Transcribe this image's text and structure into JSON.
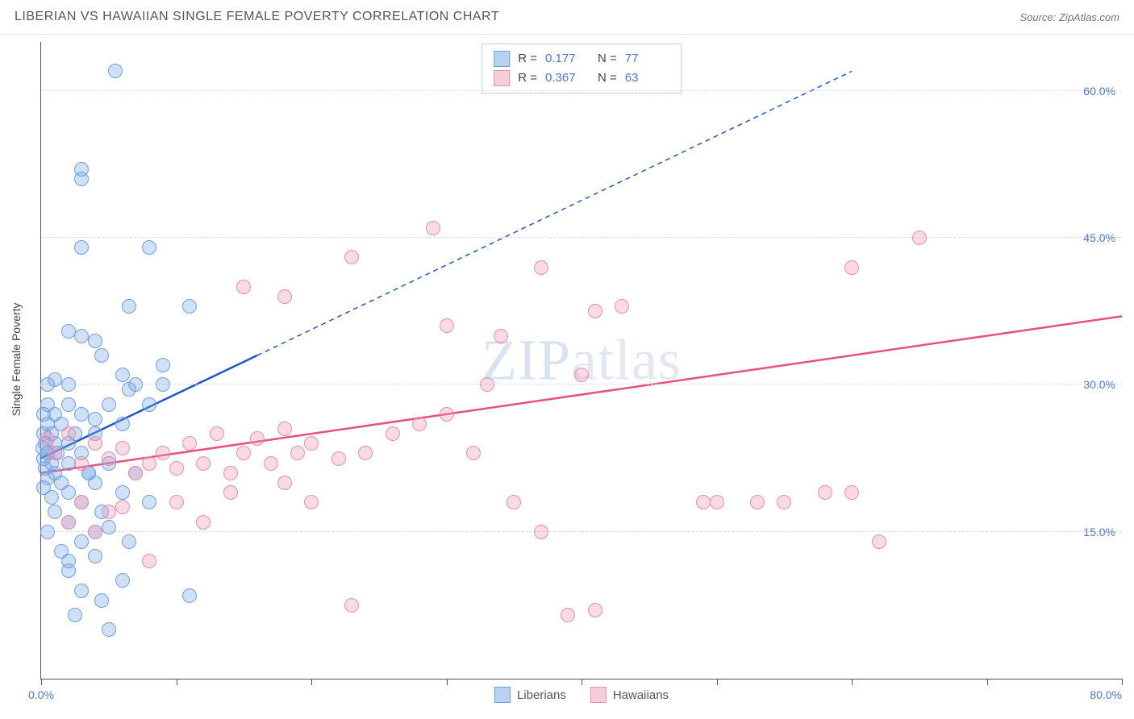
{
  "title": "LIBERIAN VS HAWAIIAN SINGLE FEMALE POVERTY CORRELATION CHART",
  "source_label": "Source: ",
  "source_name": "ZipAtlas.com",
  "ylabel": "Single Female Poverty",
  "watermark_a": "ZIP",
  "watermark_b": "atlas",
  "axes": {
    "xlim": [
      0,
      80
    ],
    "ylim": [
      0,
      65
    ],
    "xtick_positions": [
      0,
      10,
      20,
      30,
      40,
      50,
      60,
      70,
      80
    ],
    "xtick_labels_shown": {
      "0": "0.0%",
      "80": "80.0%"
    },
    "ytick_positions": [
      15,
      30,
      45,
      60
    ],
    "ytick_labels": {
      "15": "15.0%",
      "30": "30.0%",
      "45": "45.0%",
      "60": "60.0%"
    },
    "gridline_color": "#dddddd",
    "axis_color": "#555555",
    "tick_label_color": "#4a78d6"
  },
  "series": {
    "liberians": {
      "label": "Liberians",
      "fill": "rgba(120,165,230,0.35)",
      "stroke": "#6f9fe0",
      "swatch_fill": "#b9d1f2",
      "swatch_border": "#6f9fe0",
      "trend_color": "#1f56c4",
      "trend_width": 2.5,
      "trend_solid": {
        "x1": 0,
        "y1": 22.5,
        "x2": 16,
        "y2": 33
      },
      "trend_dash": {
        "x1": 16,
        "y1": 33,
        "x2": 60,
        "y2": 62
      },
      "R": "0.177",
      "N": "77",
      "marker_radius": 8,
      "points": [
        [
          5.5,
          62
        ],
        [
          3,
          52
        ],
        [
          3,
          51
        ],
        [
          3,
          44
        ],
        [
          8,
          44
        ],
        [
          6.5,
          38
        ],
        [
          11,
          38
        ],
        [
          2,
          35.5
        ],
        [
          3,
          35
        ],
        [
          4,
          34.5
        ],
        [
          4.5,
          33
        ],
        [
          9,
          32
        ],
        [
          6,
          31
        ],
        [
          1,
          30.5
        ],
        [
          0.5,
          30
        ],
        [
          2,
          30
        ],
        [
          7,
          30
        ],
        [
          9,
          30
        ],
        [
          6.5,
          29.5
        ],
        [
          0.5,
          28
        ],
        [
          2,
          28
        ],
        [
          5,
          28
        ],
        [
          8,
          28
        ],
        [
          0.2,
          27
        ],
        [
          1,
          27
        ],
        [
          3,
          27
        ],
        [
          4,
          26.5
        ],
        [
          0.5,
          26
        ],
        [
          1.5,
          26
        ],
        [
          6,
          26
        ],
        [
          0.2,
          25
        ],
        [
          0.8,
          25
        ],
        [
          2.5,
          25
        ],
        [
          4,
          25
        ],
        [
          0.3,
          24
        ],
        [
          1,
          24
        ],
        [
          2,
          24
        ],
        [
          0.1,
          23.5
        ],
        [
          0.5,
          23
        ],
        [
          1.2,
          23
        ],
        [
          3,
          23
        ],
        [
          0.2,
          22.5
        ],
        [
          0.8,
          22
        ],
        [
          2,
          22
        ],
        [
          5,
          22
        ],
        [
          0.3,
          21.5
        ],
        [
          1,
          21
        ],
        [
          3.5,
          21
        ],
        [
          7,
          21
        ],
        [
          0.5,
          20.5
        ],
        [
          1.5,
          20
        ],
        [
          4,
          20
        ],
        [
          0.2,
          19.5
        ],
        [
          2,
          19
        ],
        [
          6,
          19
        ],
        [
          0.8,
          18.5
        ],
        [
          3,
          18
        ],
        [
          8,
          18
        ],
        [
          1,
          17
        ],
        [
          4.5,
          17
        ],
        [
          2,
          16
        ],
        [
          5,
          15.5
        ],
        [
          0.5,
          15
        ],
        [
          3,
          14
        ],
        [
          1.5,
          13
        ],
        [
          4,
          12.5
        ],
        [
          2,
          11
        ],
        [
          6,
          10
        ],
        [
          3,
          9
        ],
        [
          4.5,
          8
        ],
        [
          2.5,
          6.5
        ],
        [
          5,
          5
        ],
        [
          4,
          15
        ],
        [
          11,
          8.5
        ],
        [
          3.5,
          21
        ],
        [
          2,
          12
        ],
        [
          6.5,
          14
        ]
      ]
    },
    "hawaiians": {
      "label": "Hawaiians",
      "fill": "rgba(240,150,180,0.35)",
      "stroke": "#e88fab",
      "swatch_fill": "#f7cdd9",
      "swatch_border": "#e88fab",
      "trend_color": "#e94f7f",
      "trend_width": 2.5,
      "trend_solid": {
        "x1": 0,
        "y1": 21,
        "x2": 80,
        "y2": 37
      },
      "R": "0.367",
      "N": "63",
      "marker_radius": 8,
      "points": [
        [
          29,
          46
        ],
        [
          65,
          45
        ],
        [
          23,
          43
        ],
        [
          37,
          42
        ],
        [
          60,
          42
        ],
        [
          15,
          40
        ],
        [
          18,
          39
        ],
        [
          41,
          37.5
        ],
        [
          30,
          36
        ],
        [
          34,
          35
        ],
        [
          0.5,
          24.5
        ],
        [
          1,
          23
        ],
        [
          2,
          25
        ],
        [
          3,
          22
        ],
        [
          4,
          24
        ],
        [
          5,
          22.5
        ],
        [
          6,
          23.5
        ],
        [
          7,
          21
        ],
        [
          8,
          22
        ],
        [
          9,
          23
        ],
        [
          10,
          21.5
        ],
        [
          11,
          24
        ],
        [
          12,
          22
        ],
        [
          13,
          25
        ],
        [
          14,
          21
        ],
        [
          15,
          23
        ],
        [
          16,
          24.5
        ],
        [
          17,
          22
        ],
        [
          18,
          25.5
        ],
        [
          19,
          23
        ],
        [
          20,
          24
        ],
        [
          22,
          22.5
        ],
        [
          24,
          23
        ],
        [
          26,
          25
        ],
        [
          30,
          27
        ],
        [
          32,
          23
        ],
        [
          40,
          31
        ],
        [
          49,
          18
        ],
        [
          50,
          18
        ],
        [
          53,
          18
        ],
        [
          55,
          18
        ],
        [
          58,
          19
        ],
        [
          60,
          19
        ],
        [
          43,
          38
        ],
        [
          35,
          18
        ],
        [
          37,
          15
        ],
        [
          41,
          7
        ],
        [
          39,
          6.5
        ],
        [
          3,
          18
        ],
        [
          5,
          17
        ],
        [
          2,
          16
        ],
        [
          4,
          15
        ],
        [
          6,
          17.5
        ],
        [
          8,
          12
        ],
        [
          10,
          18
        ],
        [
          12,
          16
        ],
        [
          14,
          19
        ],
        [
          23,
          7.5
        ],
        [
          28,
          26
        ],
        [
          33,
          30
        ],
        [
          20,
          18
        ],
        [
          62,
          14
        ],
        [
          18,
          20
        ]
      ]
    }
  },
  "stats_labels": {
    "R": "R =",
    "N": "N ="
  },
  "colors": {
    "background": "#ffffff",
    "title_color": "#555555",
    "label_color": "#444444"
  },
  "fontsize": {
    "title": 16,
    "axis_label": 14,
    "tick": 14,
    "legend": 15,
    "stats": 15,
    "watermark": 72
  }
}
